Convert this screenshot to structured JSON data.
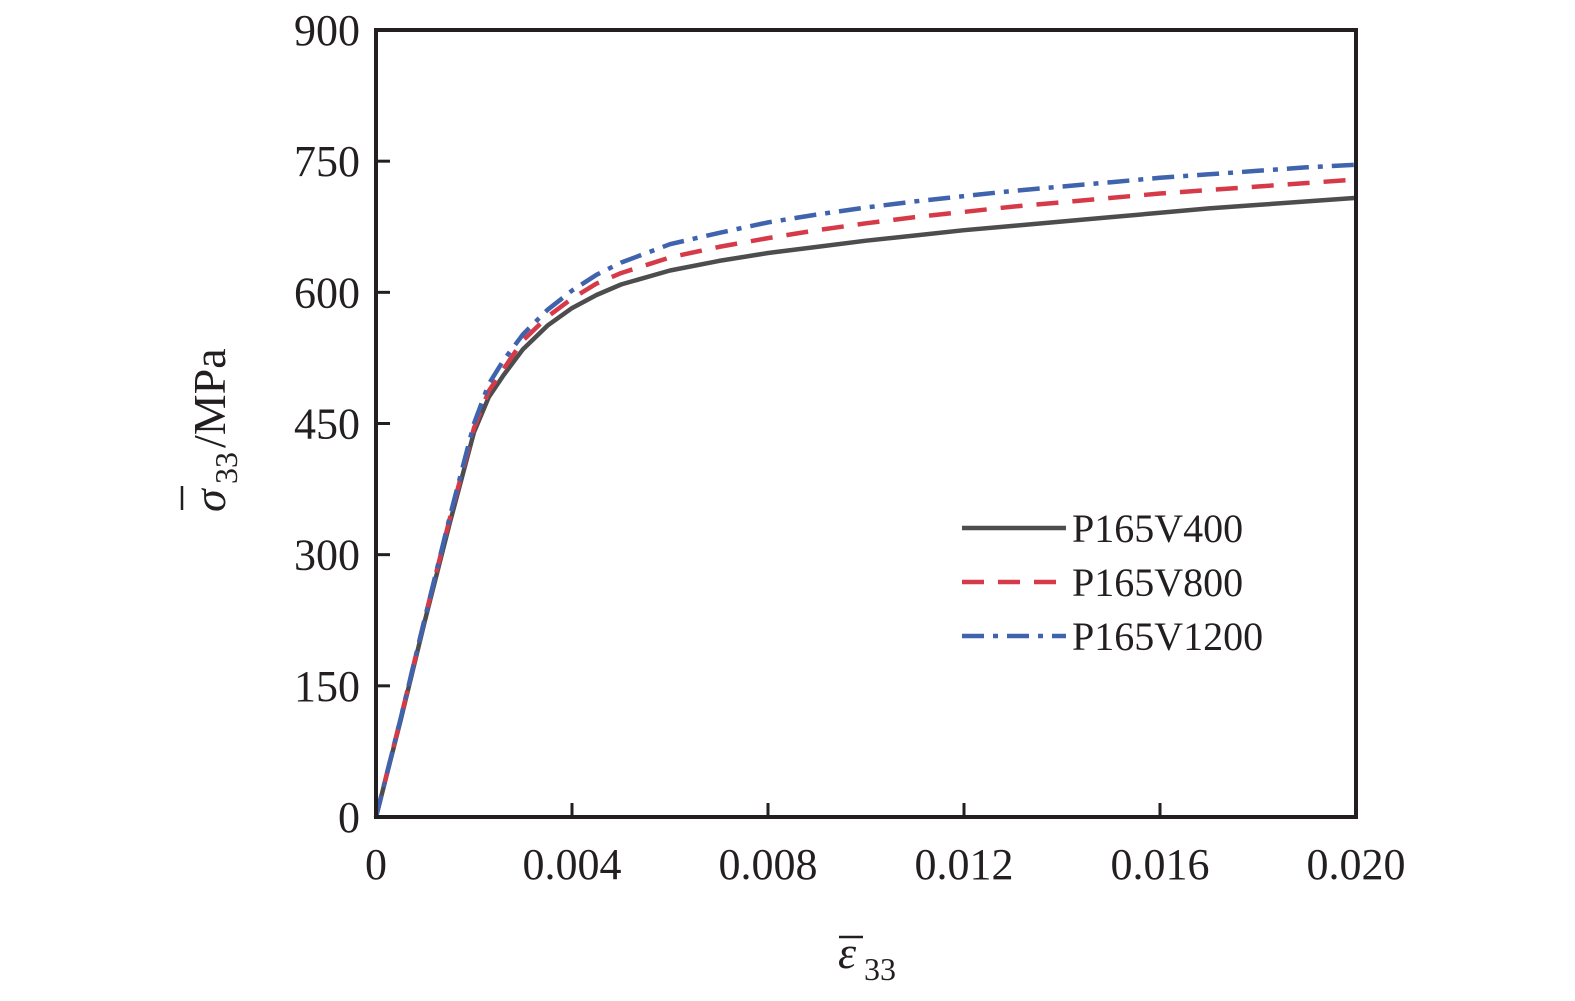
{
  "chart_data": {
    "type": "line",
    "title": "",
    "xlabel": {
      "symbol": "ε",
      "subscript": "33"
    },
    "ylabel": {
      "symbol": "σ",
      "subscript": "33",
      "unit": "/MPa"
    },
    "xlim": [
      0,
      0.02
    ],
    "ylim": [
      0,
      900
    ],
    "xticks": [
      {
        "value": 0,
        "label": "0"
      },
      {
        "value": 0.004,
        "label": "0.004"
      },
      {
        "value": 0.008,
        "label": "0.008"
      },
      {
        "value": 0.012,
        "label": "0.012"
      },
      {
        "value": 0.016,
        "label": "0.016"
      },
      {
        "value": 0.02,
        "label": "0.020"
      }
    ],
    "yticks": [
      {
        "value": 0,
        "label": "0"
      },
      {
        "value": 150,
        "label": "150"
      },
      {
        "value": 300,
        "label": "300"
      },
      {
        "value": 450,
        "label": "450"
      },
      {
        "value": 600,
        "label": "600"
      },
      {
        "value": 750,
        "label": "750"
      },
      {
        "value": 900,
        "label": "900"
      }
    ],
    "grid": false,
    "legend_position": "right-middle",
    "series": [
      {
        "name": "P165V400",
        "color": "#4d4d4f",
        "dash": "solid",
        "x": [
          0,
          0.0005,
          0.001,
          0.0015,
          0.002,
          0.0023,
          0.0026,
          0.003,
          0.0035,
          0.004,
          0.0045,
          0.005,
          0.006,
          0.007,
          0.008,
          0.009,
          0.01,
          0.011,
          0.012,
          0.013,
          0.014,
          0.015,
          0.016,
          0.017,
          0.018,
          0.019,
          0.02
        ],
        "y": [
          0,
          110,
          225,
          335,
          440,
          480,
          505,
          535,
          562,
          582,
          597,
          609,
          625,
          636,
          645,
          652,
          659,
          665,
          671,
          676,
          681,
          686,
          691,
          696,
          700,
          704,
          708
        ]
      },
      {
        "name": "P165V800",
        "color": "#d63a48",
        "dash": "dashed",
        "x": [
          0,
          0.0005,
          0.001,
          0.0015,
          0.002,
          0.0023,
          0.0026,
          0.003,
          0.0035,
          0.004,
          0.0045,
          0.005,
          0.006,
          0.007,
          0.008,
          0.009,
          0.01,
          0.011,
          0.012,
          0.013,
          0.014,
          0.015,
          0.016,
          0.017,
          0.018,
          0.019,
          0.02
        ],
        "y": [
          0,
          112,
          228,
          340,
          445,
          487,
          512,
          545,
          572,
          593,
          610,
          622,
          640,
          652,
          662,
          671,
          679,
          686,
          692,
          698,
          703,
          708,
          713,
          717,
          721,
          725,
          729
        ]
      },
      {
        "name": "P165V1200",
        "color": "#3f63ad",
        "dash": "dashdot",
        "x": [
          0,
          0.0005,
          0.001,
          0.0015,
          0.002,
          0.0023,
          0.0026,
          0.003,
          0.0035,
          0.004,
          0.0045,
          0.005,
          0.006,
          0.007,
          0.008,
          0.009,
          0.01,
          0.011,
          0.012,
          0.013,
          0.014,
          0.015,
          0.016,
          0.017,
          0.018,
          0.019,
          0.02
        ],
        "y": [
          0,
          112,
          228,
          342,
          450,
          495,
          522,
          552,
          580,
          602,
          620,
          634,
          655,
          668,
          680,
          689,
          697,
          704,
          710,
          716,
          721,
          726,
          731,
          735,
          739,
          743,
          746
        ]
      }
    ]
  }
}
